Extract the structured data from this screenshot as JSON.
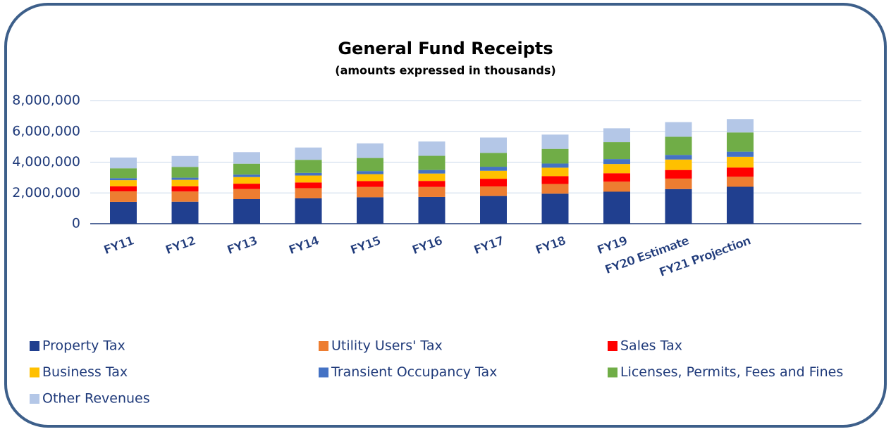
{
  "chart_data": {
    "type": "stacked_bar",
    "title": "General Fund Receipts",
    "subtitle": "(amounts expressed in thousands)",
    "categories": [
      "FY11",
      "FY12",
      "FY13",
      "FY14",
      "FY15",
      "FY16",
      "FY17",
      "FY18",
      "FY19",
      "FY20 Estimate",
      "FY21 Projection"
    ],
    "series": [
      {
        "name": "Property Tax",
        "color": "#203f8f",
        "values": [
          1420000,
          1430000,
          1600000,
          1650000,
          1720000,
          1740000,
          1800000,
          1950000,
          2080000,
          2250000,
          2400000
        ]
      },
      {
        "name": "Utility Users' Tax",
        "color": "#ed7d31",
        "values": [
          680000,
          660000,
          650000,
          660000,
          670000,
          650000,
          620000,
          630000,
          650000,
          680000,
          650000
        ]
      },
      {
        "name": "Sales Tax",
        "color": "#ff0000",
        "values": [
          330000,
          340000,
          350000,
          370000,
          380000,
          390000,
          500000,
          510000,
          550000,
          560000,
          600000
        ]
      },
      {
        "name": "Business Tax",
        "color": "#ffc000",
        "values": [
          400000,
          420000,
          430000,
          450000,
          450000,
          480000,
          520000,
          550000,
          600000,
          680000,
          700000
        ]
      },
      {
        "name": "Transient Occupancy Tax",
        "color": "#4472c4",
        "values": [
          130000,
          140000,
          160000,
          170000,
          200000,
          230000,
          260000,
          270000,
          320000,
          300000,
          330000
        ]
      },
      {
        "name": "Licenses, Permits, Fees and Fines",
        "color": "#70ad47",
        "values": [
          640000,
          700000,
          710000,
          850000,
          850000,
          920000,
          900000,
          950000,
          1100000,
          1180000,
          1250000
        ]
      },
      {
        "name": "Other Revenues",
        "color": "#b4c7e7",
        "values": [
          700000,
          710000,
          750000,
          800000,
          950000,
          930000,
          1000000,
          930000,
          900000,
          950000,
          870000
        ]
      }
    ],
    "ylim": [
      0,
      8000000
    ],
    "yticks": [
      0,
      {
        "value": 2000000,
        "label": "2,000,000"
      },
      {
        "value": 4000000,
        "label": "4,000,000"
      },
      {
        "value": 6000000,
        "label": "6,000,000"
      },
      {
        "value": 8000000,
        "label": "8,000,000"
      }
    ],
    "grid": true
  }
}
